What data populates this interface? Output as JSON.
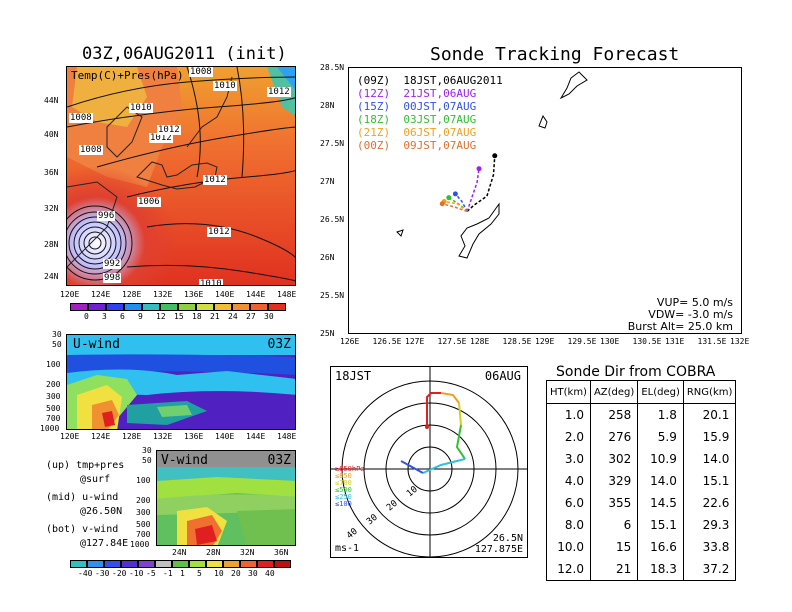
{
  "left_map": {
    "title": "03Z,06AUG2011 (init)",
    "inner_label": "Temp(C)+Pres(hPa)",
    "lat_labels": [
      "44N",
      "40N",
      "36N",
      "32N",
      "28N",
      "24N"
    ],
    "lon_labels": [
      "120E",
      "124E",
      "128E",
      "132E",
      "136E",
      "140E",
      "144E",
      "148E"
    ],
    "isobar_labels": [
      "1008",
      "1012",
      "1010",
      "1010",
      "1008",
      "1012",
      "1008",
      "1012",
      "1006",
      "1012",
      "996",
      "1012",
      "992",
      "998",
      "1010"
    ],
    "colorbar_ticks": [
      "0",
      "3",
      "6",
      "9",
      "12",
      "15",
      "18",
      "21",
      "24",
      "27",
      "30"
    ]
  },
  "u_panel": {
    "label": "U-wind",
    "time": "03Z",
    "p_labels": [
      "30",
      "50",
      "100",
      "200",
      "300",
      "500",
      "700",
      "1000"
    ],
    "lon_labels": [
      "120E",
      "124E",
      "128E",
      "132E",
      "136E",
      "140E",
      "144E",
      "148E"
    ]
  },
  "v_panel": {
    "label": "V-wind",
    "time": "03Z",
    "p_labels": [
      "30",
      "50",
      "100",
      "200",
      "300",
      "500",
      "700",
      "1000"
    ],
    "lat_labels": [
      "24N",
      "28N",
      "32N",
      "36N"
    ],
    "colorbar_ticks": [
      "-40",
      "-30",
      "-20",
      "-10",
      "-5",
      "-1",
      "1",
      "5",
      "10",
      "20",
      "30",
      "40"
    ]
  },
  "legend_text": {
    "up": "(up) tmp+pres",
    "up2": "@surf",
    "mid": "(mid) u-wind",
    "mid2": "@26.50N",
    "bot": "(bot) v-wind",
    "bot2": "@127.84E"
  },
  "tracking": {
    "title": "Sonde Tracking Forecast",
    "lat_labels": [
      "28.5N",
      "28N",
      "27.5N",
      "27N",
      "26.5N",
      "26N",
      "25.5N",
      "25N"
    ],
    "lon_labels": [
      "126E",
      "126.5E",
      "127E",
      "127.5E",
      "128E",
      "128.5E",
      "129E",
      "129.5E",
      "130E",
      "130.5E",
      "131E",
      "131.5E",
      "132E"
    ],
    "launches": [
      {
        "label": "(09Z)  18JST,06AUG2011",
        "color": "#000000"
      },
      {
        "label": "(12Z)  21JST,06AUG",
        "color": "#a020f0"
      },
      {
        "label": "(15Z)  00JST,07AUG",
        "color": "#3050f0"
      },
      {
        "label": "(18Z)  03JST,07AUG",
        "color": "#30c030"
      },
      {
        "label": "(21Z)  06JST,07AUG",
        "color": "#f0a020"
      },
      {
        "label": "(00Z)  09JST,07AUG",
        "color": "#e07030"
      }
    ],
    "vup": "VUP= 5.0 m/s",
    "vdw": "VDW= -3.0 m/s",
    "burst": "Burst Alt= 25.0 km"
  },
  "polar": {
    "time_left": "18JST",
    "date_right": "06AUG",
    "ring_labels": [
      "10",
      "20",
      "30",
      "40"
    ],
    "legend": [
      {
        "label": "≥850hPa",
        "color": "#e02020"
      },
      {
        "label": "≤850",
        "color": "#f0a020"
      },
      {
        "label": "≤700",
        "color": "#d0d020"
      },
      {
        "label": "≤500",
        "color": "#30c030"
      },
      {
        "label": "≤250",
        "color": "#30c0e0"
      },
      {
        "label": "≤100",
        "color": "#3050f0"
      }
    ],
    "unit": "ms-1",
    "pos_lat": "26.5N",
    "pos_lon": "127.875E"
  },
  "sonde_dir": {
    "title": "Sonde Dir from COBRA",
    "headers": [
      "HT(km)",
      "AZ(deg)",
      "EL(deg)",
      "RNG(km)"
    ],
    "rows": [
      [
        "1.0",
        "258",
        "1.8",
        "20.1"
      ],
      [
        "2.0",
        "276",
        "5.9",
        "15.9"
      ],
      [
        "3.0",
        "302",
        "10.9",
        "14.0"
      ],
      [
        "4.0",
        "329",
        "14.0",
        "15.1"
      ],
      [
        "6.0",
        "355",
        "14.5",
        "22.6"
      ],
      [
        "8.0",
        "6",
        "15.1",
        "29.3"
      ],
      [
        "10.0",
        "15",
        "16.6",
        "33.8"
      ],
      [
        "12.0",
        "21",
        "18.3",
        "37.2"
      ]
    ]
  }
}
